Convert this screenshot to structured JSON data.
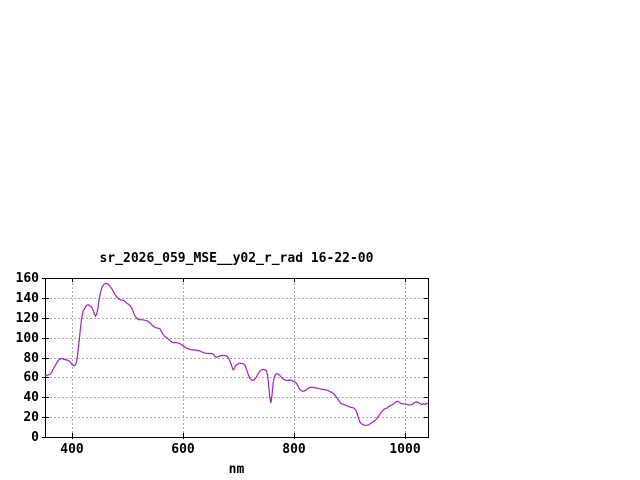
{
  "window": {
    "background": "#ffffff"
  },
  "chart_data": {
    "type": "line",
    "title": "sr_2026_059_MSE__y02_r_rad 16-22-00",
    "xlabel": "nm",
    "ylabel": "",
    "xlim": [
      351,
      1041
    ],
    "ylim": [
      0,
      160
    ],
    "x_ticks": [
      400,
      600,
      800,
      1000
    ],
    "y_ticks": [
      0,
      20,
      40,
      60,
      80,
      100,
      120,
      140,
      160
    ],
    "grid": true,
    "grid_style": "dashed",
    "legend": "none",
    "colors": {
      "line": "#A020C0",
      "grid": "#A8A8A8",
      "axis": "#000000",
      "text": "#000000",
      "background": "#FFFFFF"
    },
    "series": [
      {
        "name": "sr_2026_059_MSE__y02_r_rad",
        "points": [
          [
            351,
            61.5
          ],
          [
            354,
            62
          ],
          [
            357,
            62.5
          ],
          [
            360,
            63
          ],
          [
            363,
            65
          ],
          [
            366,
            68.5
          ],
          [
            369,
            71.5
          ],
          [
            372,
            74.5
          ],
          [
            375,
            77
          ],
          [
            378,
            78.5
          ],
          [
            381,
            79
          ],
          [
            384,
            78.5
          ],
          [
            387,
            78
          ],
          [
            390,
            77.5
          ],
          [
            393,
            77
          ],
          [
            396,
            76
          ],
          [
            399,
            73.5
          ],
          [
            402,
            72
          ],
          [
            404,
            71.5
          ],
          [
            406,
            72.5
          ],
          [
            408,
            76
          ],
          [
            410,
            84
          ],
          [
            412,
            94
          ],
          [
            414,
            105
          ],
          [
            416,
            115
          ],
          [
            418,
            122.5
          ],
          [
            420,
            127
          ],
          [
            423,
            130
          ],
          [
            426,
            132.5
          ],
          [
            429,
            133
          ],
          [
            432,
            132
          ],
          [
            435,
            130.5
          ],
          [
            438,
            127
          ],
          [
            440,
            124
          ],
          [
            442,
            121.5
          ],
          [
            444,
            123.5
          ],
          [
            446,
            128
          ],
          [
            448,
            136
          ],
          [
            450,
            143
          ],
          [
            452,
            148
          ],
          [
            454,
            151
          ],
          [
            457,
            153.5
          ],
          [
            460,
            154.5
          ],
          [
            463,
            154.5
          ],
          [
            466,
            153
          ],
          [
            469,
            151
          ],
          [
            472,
            148.5
          ],
          [
            476,
            144.5
          ],
          [
            480,
            141
          ],
          [
            484,
            139
          ],
          [
            488,
            138
          ],
          [
            492,
            137.5
          ],
          [
            496,
            136
          ],
          [
            500,
            134
          ],
          [
            504,
            132.5
          ],
          [
            508,
            129
          ],
          [
            512,
            123
          ],
          [
            516,
            119.5
          ],
          [
            520,
            118
          ],
          [
            525,
            118
          ],
          [
            530,
            117.5
          ],
          [
            535,
            117
          ],
          [
            540,
            115
          ],
          [
            545,
            112
          ],
          [
            550,
            110
          ],
          [
            555,
            109.5
          ],
          [
            558,
            109
          ],
          [
            562,
            105
          ],
          [
            566,
            101.5
          ],
          [
            570,
            100
          ],
          [
            574,
            98
          ],
          [
            578,
            96
          ],
          [
            582,
            95
          ],
          [
            586,
            95
          ],
          [
            590,
            94.8
          ],
          [
            594,
            94
          ],
          [
            598,
            92.5
          ],
          [
            602,
            91
          ],
          [
            606,
            89.5
          ],
          [
            610,
            88.5
          ],
          [
            614,
            88
          ],
          [
            618,
            87.5
          ],
          [
            622,
            87.5
          ],
          [
            626,
            87
          ],
          [
            630,
            86.5
          ],
          [
            634,
            85.5
          ],
          [
            638,
            84.5
          ],
          [
            642,
            84.2
          ],
          [
            646,
            84
          ],
          [
            650,
            84
          ],
          [
            654,
            83.5
          ],
          [
            657,
            81
          ],
          [
            660,
            80.2
          ],
          [
            663,
            80.8
          ],
          [
            666,
            81.5
          ],
          [
            670,
            82
          ],
          [
            674,
            82
          ],
          [
            678,
            81.5
          ],
          [
            681,
            80
          ],
          [
            684,
            77
          ],
          [
            687,
            72
          ],
          [
            690,
            67.5
          ],
          [
            692,
            68.5
          ],
          [
            694,
            71.5
          ],
          [
            697,
            73
          ],
          [
            700,
            74
          ],
          [
            704,
            74.2
          ],
          [
            708,
            73.8
          ],
          [
            711,
            72.5
          ],
          [
            714,
            68
          ],
          [
            717,
            63
          ],
          [
            720,
            59
          ],
          [
            723,
            57.5
          ],
          [
            726,
            57
          ],
          [
            729,
            58
          ],
          [
            732,
            60.5
          ],
          [
            735,
            63.5
          ],
          [
            738,
            66
          ],
          [
            741,
            67.5
          ],
          [
            744,
            68
          ],
          [
            747,
            67.8
          ],
          [
            750,
            66.5
          ],
          [
            752,
            62
          ],
          [
            754,
            52
          ],
          [
            756,
            40
          ],
          [
            758,
            34.5
          ],
          [
            760,
            42
          ],
          [
            762,
            54
          ],
          [
            764,
            60
          ],
          [
            766,
            62.5
          ],
          [
            768,
            63.8
          ],
          [
            771,
            63.5
          ],
          [
            774,
            62
          ],
          [
            777,
            60
          ],
          [
            780,
            58.5
          ],
          [
            783,
            57.5
          ],
          [
            786,
            57
          ],
          [
            789,
            57
          ],
          [
            792,
            57.3
          ],
          [
            795,
            57
          ],
          [
            798,
            56
          ],
          [
            801,
            55.5
          ],
          [
            804,
            54
          ],
          [
            807,
            51
          ],
          [
            810,
            48
          ],
          [
            813,
            46.5
          ],
          [
            816,
            46
          ],
          [
            820,
            46.8
          ],
          [
            824,
            48.5
          ],
          [
            828,
            49.8
          ],
          [
            832,
            50
          ],
          [
            836,
            49.8
          ],
          [
            840,
            49.3
          ],
          [
            844,
            48.7
          ],
          [
            848,
            48.2
          ],
          [
            852,
            47.8
          ],
          [
            856,
            47.5
          ],
          [
            860,
            47
          ],
          [
            864,
            45.8
          ],
          [
            868,
            44.8
          ],
          [
            872,
            43
          ],
          [
            875,
            41
          ],
          [
            878,
            38.5
          ],
          [
            881,
            36
          ],
          [
            884,
            34
          ],
          [
            887,
            33
          ],
          [
            890,
            32.5
          ],
          [
            893,
            32
          ],
          [
            896,
            31.2
          ],
          [
            900,
            30.2
          ],
          [
            904,
            29.6
          ],
          [
            908,
            29
          ],
          [
            911,
            27
          ],
          [
            913,
            24
          ],
          [
            915,
            20.5
          ],
          [
            917,
            17
          ],
          [
            919,
            14.5
          ],
          [
            922,
            13
          ],
          [
            925,
            12.2
          ],
          [
            928,
            11.8
          ],
          [
            931,
            11.8
          ],
          [
            934,
            12.2
          ],
          [
            937,
            13.5
          ],
          [
            940,
            14.5
          ],
          [
            943,
            15.5
          ],
          [
            946,
            16.8
          ],
          [
            949,
            18.5
          ],
          [
            952,
            21
          ],
          [
            955,
            23.5
          ],
          [
            958,
            25.5
          ],
          [
            961,
            27.5
          ],
          [
            964,
            28.5
          ],
          [
            967,
            29.2
          ],
          [
            970,
            30.5
          ],
          [
            973,
            31.5
          ],
          [
            976,
            32.2
          ],
          [
            979,
            33.2
          ],
          [
            982,
            35
          ],
          [
            985,
            36
          ],
          [
            988,
            35.5
          ],
          [
            991,
            34.2
          ],
          [
            994,
            33.6
          ],
          [
            997,
            33.3
          ],
          [
            1000,
            33.2
          ],
          [
            1003,
            32.8
          ],
          [
            1006,
            32.4
          ],
          [
            1009,
            32.2
          ],
          [
            1012,
            32.6
          ],
          [
            1015,
            34
          ],
          [
            1018,
            35
          ],
          [
            1021,
            35.2
          ],
          [
            1024,
            34.6
          ],
          [
            1027,
            33.4
          ],
          [
            1030,
            32.8
          ],
          [
            1033,
            33.6
          ],
          [
            1036,
            32.6
          ],
          [
            1039,
            34
          ],
          [
            1041,
            33.2
          ]
        ]
      }
    ]
  }
}
